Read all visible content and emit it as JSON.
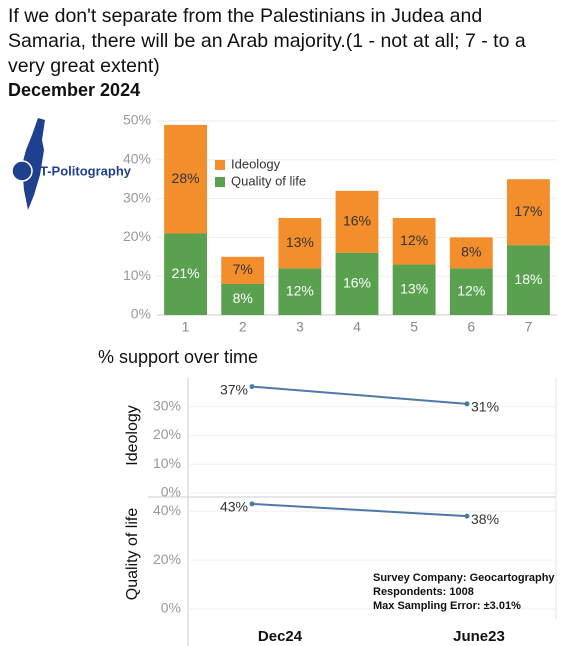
{
  "chart_data": [
    {
      "type": "bar",
      "stacked": true,
      "title": "If we don't separate from the Palestinians in Judea and Samaria, there will be an Arab majority.(1 - not at all; 7 - to a very great extent)",
      "subtitle": "December 2024",
      "logo": "T-Politography",
      "categories": [
        "1",
        "2",
        "3",
        "4",
        "5",
        "6",
        "7"
      ],
      "series": [
        {
          "name": "Ideology",
          "color": "#f28e2b",
          "values": [
            28,
            7,
            13,
            16,
            12,
            8,
            17
          ],
          "value_labels": [
            "28%",
            "7%",
            "13%",
            "16%",
            "12%",
            "8%",
            "17%"
          ]
        },
        {
          "name": "Quality of life",
          "color": "#59a14f",
          "values": [
            21,
            8,
            12,
            16,
            13,
            12,
            18
          ],
          "value_labels": [
            "21%",
            "8%",
            "12%",
            "16%",
            "13%",
            "12%",
            "18%"
          ]
        }
      ],
      "ylim": [
        0,
        50
      ],
      "yticks": [
        {
          "value": 0,
          "label": "0%"
        },
        {
          "value": 10,
          "label": "10%"
        },
        {
          "value": 20,
          "label": "20%"
        },
        {
          "value": 30,
          "label": "30%"
        },
        {
          "value": 40,
          "label": "40%"
        },
        {
          "value": 50,
          "label": "50%"
        }
      ],
      "grid": true
    },
    {
      "type": "line",
      "title": "% support over time",
      "categories": [
        "Dec24",
        "June23"
      ],
      "panels": [
        {
          "name": "Ideology",
          "color": "#4e79a7",
          "values": [
            37,
            31
          ],
          "value_labels": [
            "37%",
            "31%"
          ],
          "ylim": [
            0,
            40
          ],
          "yticks": [
            {
              "value": 0,
              "label": "0%"
            },
            {
              "value": 10,
              "label": "10%"
            },
            {
              "value": 20,
              "label": "20%"
            },
            {
              "value": 30,
              "label": "30%"
            }
          ]
        },
        {
          "name": "Quality of life",
          "color": "#4e79a7",
          "values": [
            43,
            38
          ],
          "value_labels": [
            "43%",
            "38%"
          ],
          "ylim": [
            0,
            45
          ],
          "yticks": [
            {
              "value": 0,
              "label": "0%"
            },
            {
              "value": 20,
              "label": "20%"
            },
            {
              "value": 40,
              "label": "40%"
            }
          ]
        }
      ],
      "annotations": [
        "Survey Company: Geocartography",
        "Respondents: 1008",
        "Max Sampling Error: ±3.01%"
      ],
      "grid": true
    }
  ]
}
